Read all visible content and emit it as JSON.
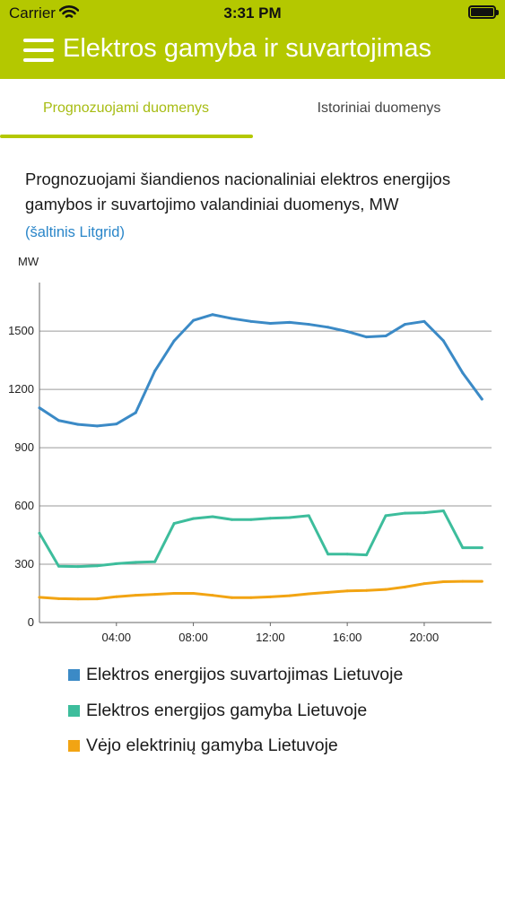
{
  "status_bar": {
    "carrier": "Carrier",
    "time": "3:31 PM"
  },
  "header": {
    "title": "Elektros gamyba ir suvartojimas"
  },
  "tabs": [
    {
      "label": "Prognozuojami duomenys",
      "active": true
    },
    {
      "label": "Istoriniai duomenys",
      "active": false
    }
  ],
  "description": "Prognozuojami šiandienos nacionaliniai elektros energijos gamybos ir suvartojimo valandiniai duomenys, MW",
  "source_link": "(šaltinis Litgrid)",
  "colors": {
    "brand": "#b4c800",
    "consumption": "#3b8ac6",
    "production": "#3dbd9c",
    "wind": "#f2a413",
    "link": "#2a86c9"
  },
  "chart_data": {
    "type": "line",
    "ylabel": "MW",
    "ylim": [
      0,
      1750
    ],
    "yticks": [
      0,
      300,
      600,
      900,
      1200,
      1500
    ],
    "xlim": [
      0,
      23.5
    ],
    "xticks": [
      {
        "value": 4,
        "label": "04:00"
      },
      {
        "value": 8,
        "label": "08:00"
      },
      {
        "value": 12,
        "label": "12:00"
      },
      {
        "value": 16,
        "label": "16:00"
      },
      {
        "value": 20,
        "label": "20:00"
      }
    ],
    "grid": true,
    "x": [
      0,
      1,
      2,
      3,
      4,
      5,
      6,
      7,
      8,
      9,
      10,
      11,
      12,
      13,
      14,
      15,
      16,
      17,
      18,
      19,
      20,
      21,
      22,
      23
    ],
    "series": [
      {
        "name": "Elektros energijos suvartojimas Lietuvoje",
        "color": "#3b8ac6",
        "values": [
          1105,
          1040,
          1020,
          1012,
          1022,
          1080,
          1295,
          1450,
          1555,
          1585,
          1565,
          1550,
          1540,
          1545,
          1535,
          1520,
          1498,
          1470,
          1475,
          1535,
          1550,
          1450,
          1285,
          1150
        ]
      },
      {
        "name": "Elektros energijos gamyba Lietuvoje",
        "color": "#3dbd9c",
        "values": [
          460,
          290,
          288,
          292,
          303,
          310,
          313,
          510,
          535,
          545,
          530,
          530,
          537,
          540,
          550,
          352,
          352,
          348,
          550,
          563,
          565,
          575,
          385,
          385
        ]
      },
      {
        "name": "Vėjo elektrinių gamyba Lietuvoje",
        "color": "#f2a413",
        "values": [
          130,
          123,
          121,
          122,
          133,
          140,
          145,
          150,
          150,
          140,
          128,
          128,
          132,
          138,
          148,
          155,
          163,
          165,
          170,
          183,
          200,
          210,
          212,
          212
        ]
      }
    ]
  }
}
